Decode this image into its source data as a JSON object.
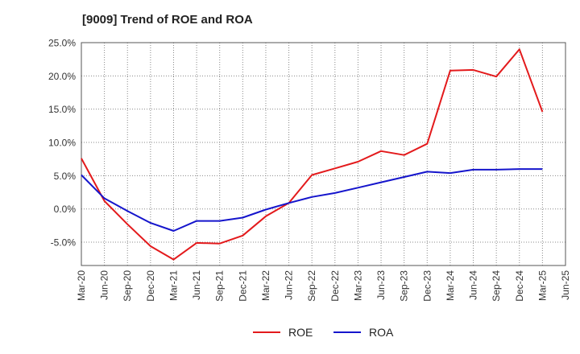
{
  "title": "[9009]  Trend of ROE and ROA",
  "chart_data": {
    "type": "line",
    "title": "[9009]  Trend of ROE and ROA",
    "xlabel": "",
    "ylabel": "",
    "categories": [
      "Mar-20",
      "Jun-20",
      "Sep-20",
      "Dec-20",
      "Mar-21",
      "Jun-21",
      "Sep-21",
      "Dec-21",
      "Mar-22",
      "Jun-22",
      "Sep-22",
      "Dec-22",
      "Mar-23",
      "Jun-23",
      "Sep-23",
      "Dec-23",
      "Mar-24",
      "Jun-24",
      "Sep-24",
      "Dec-24",
      "Mar-25",
      "Jun-25"
    ],
    "yticks": [
      "25.0%",
      "20.0%",
      "15.0%",
      "10.0%",
      "5.0%",
      "0.0%",
      "-5.0%"
    ],
    "ylim": [
      -8.5,
      25.0
    ],
    "grid": true,
    "legend_position": "bottom",
    "series": [
      {
        "name": "ROE",
        "color": "#e31a1c",
        "values": [
          7.6,
          1.2,
          -2.3,
          -5.6,
          -7.6,
          -5.1,
          -5.2,
          -4.0,
          -1.1,
          0.9,
          5.1,
          6.1,
          7.1,
          8.7,
          8.1,
          9.8,
          20.8,
          20.9,
          19.9,
          24.0,
          14.6,
          null
        ]
      },
      {
        "name": "ROA",
        "color": "#1515cc",
        "values": [
          5.1,
          1.6,
          -0.3,
          -2.1,
          -3.3,
          -1.8,
          -1.8,
          -1.3,
          -0.1,
          0.9,
          1.8,
          2.4,
          3.2,
          4.0,
          4.8,
          5.6,
          5.4,
          5.9,
          5.9,
          6.0,
          6.0,
          null
        ]
      }
    ]
  },
  "legend": {
    "items": [
      {
        "label": "ROE",
        "color": "#e31a1c"
      },
      {
        "label": "ROA",
        "color": "#1515cc"
      }
    ]
  }
}
